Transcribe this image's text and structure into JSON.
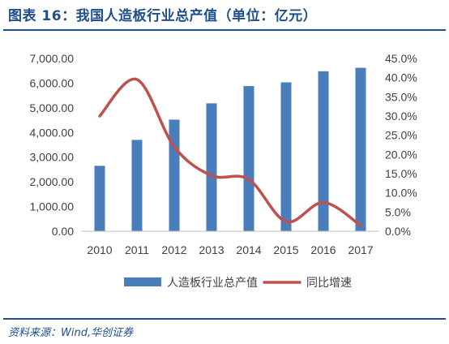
{
  "header": {
    "title": "图表 16：我国人造板行业总产值（单位：亿元）"
  },
  "footer": {
    "source": "资料来源：Wind,华创证券"
  },
  "colors": {
    "bar": "#4a7ebb",
    "line": "#c0504d",
    "text": "#404040",
    "title": "#1f4e8c"
  },
  "chart_data": {
    "type": "bar",
    "title": "",
    "categories": [
      "2010",
      "2011",
      "2012",
      "2013",
      "2014",
      "2015",
      "2016",
      "2017"
    ],
    "series": [
      {
        "name": "人造板行业总产值",
        "type": "bar",
        "axis": "left",
        "values": [
          2650,
          3700,
          4520,
          5180,
          5880,
          6030,
          6480,
          6620
        ]
      },
      {
        "name": "同比增速",
        "type": "line",
        "axis": "right",
        "values": [
          0.3,
          0.395,
          0.22,
          0.145,
          0.135,
          0.025,
          0.075,
          0.015
        ]
      }
    ],
    "y_left": {
      "min": 0,
      "max": 7000,
      "step": 1000,
      "tick_labels": [
        "0.00",
        "1,000.00",
        "2,000.00",
        "3,000.00",
        "4,000.00",
        "5,000.00",
        "6,000.00",
        "7,000.00"
      ]
    },
    "y_right": {
      "min": 0,
      "max": 0.45,
      "step": 0.05,
      "tick_labels": [
        "0.0%",
        "5.0%",
        "10.0%",
        "15.0%",
        "20.0%",
        "25.0%",
        "30.0%",
        "35.0%",
        "40.0%",
        "45.0%"
      ]
    },
    "grid": false,
    "legend_position": "bottom"
  }
}
